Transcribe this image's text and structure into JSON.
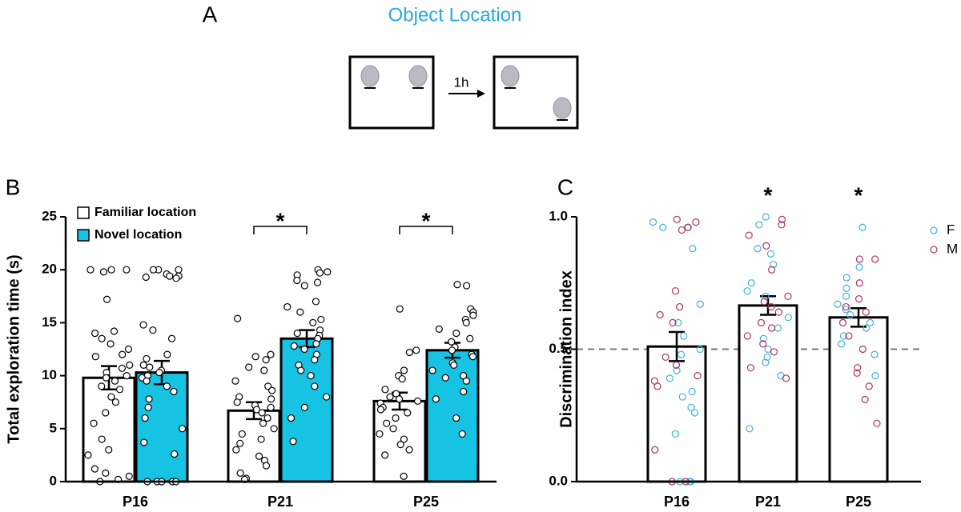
{
  "panel_a": {
    "label": "A",
    "title": "Object Location",
    "interval": "1h"
  },
  "chart_data": [
    {
      "type": "bar",
      "panel": "B",
      "ylabel": "Total exploration time (s)",
      "categories": [
        "P16",
        "P21",
        "P25"
      ],
      "ylim": [
        0,
        25
      ],
      "yticks": [
        0,
        5,
        10,
        15,
        20,
        25
      ],
      "significance": [
        null,
        "*",
        "*"
      ],
      "series": [
        {
          "name": "Familiar location",
          "color": "#ffffff",
          "values": [
            9.8,
            6.7,
            7.6
          ],
          "errors": [
            1.1,
            0.8,
            0.8
          ],
          "points": [
            [
              20,
              20,
              20,
              19.8,
              17.2,
              14.2,
              14,
              13.5,
              13,
              12.5,
              12,
              11.8,
              11,
              10.7,
              10.3,
              10,
              9.8,
              9.5,
              9,
              8.7,
              8,
              7.5,
              6.5,
              5.5,
              4,
              3,
              2.5,
              1.2,
              0.8,
              0.5,
              0.2,
              0
            ],
            [
              15.4,
              12,
              11.8,
              11.5,
              10.8,
              10.5,
              9.5,
              9,
              8.6,
              8,
              7.8,
              7.5,
              7.2,
              7,
              6.8,
              6.5,
              6,
              5.5,
              5,
              4.5,
              4,
              3.6,
              3,
              2.4,
              2,
              1.5,
              0.8,
              0.3,
              0.2
            ],
            [
              16.3,
              12.4,
              12.2,
              10.5,
              10,
              9.7,
              8.7,
              8.3,
              8,
              7.8,
              7.6,
              7.4,
              7,
              6.8,
              6.5,
              6,
              5.5,
              5,
              4.5,
              4,
              3.5,
              3,
              2.5,
              0.5
            ]
          ]
        },
        {
          "name": "Novel location",
          "color": "#17c3e3",
          "values": [
            10.3,
            13.5,
            12.4
          ],
          "errors": [
            1.1,
            0.8,
            0.7
          ],
          "points": [
            [
              20,
              20,
              20,
              19.6,
              19.4,
              19.4,
              19.3,
              19.2,
              14.8,
              14.3,
              13.5,
              12,
              11.6,
              11,
              10.8,
              10.5,
              10.3,
              10,
              9.8,
              9.5,
              9,
              8.5,
              7.8,
              7,
              6,
              5,
              3.7,
              2.6,
              0,
              0,
              0,
              0,
              0
            ],
            [
              20,
              19.8,
              19.7,
              19.5,
              19,
              18.8,
              18.5,
              17,
              16.5,
              16,
              15.3,
              15,
              14.3,
              14,
              13.8,
              13.5,
              13,
              12.8,
              12.5,
              12,
              11.5,
              11,
              10.5,
              10,
              9,
              8,
              7,
              6,
              3.8
            ],
            [
              18.6,
              18.5,
              16.3,
              16,
              15.7,
              15.3,
              15,
              14.4,
              14,
              13.5,
              13.2,
              12.7,
              12.4,
              12,
              11.8,
              11.2,
              11,
              10.5,
              10,
              9.8,
              9.5,
              8.5,
              7.8,
              6,
              4.5
            ]
          ]
        }
      ]
    },
    {
      "type": "bar",
      "panel": "C",
      "ylabel": "Discrimination index",
      "categories": [
        "P16",
        "P21",
        "P25"
      ],
      "values": [
        0.51,
        0.665,
        0.62
      ],
      "errors": [
        0.055,
        0.035,
        0.035
      ],
      "color": "#ffffff",
      "ylim": [
        0,
        1
      ],
      "yticks": [
        {
          "value": 0,
          "label": "0.0"
        },
        {
          "value": 0.5,
          "label": "0.5"
        },
        {
          "value": 1,
          "label": "1.0"
        }
      ],
      "reference_line": 0.5,
      "significance": [
        null,
        "*",
        "*"
      ],
      "series": [
        {
          "name": "F",
          "color": "#3fb3d6",
          "points": [
            [
              0.98,
              0.96,
              0.96,
              0.88,
              0.67,
              0.6,
              0.55,
              0.5,
              0.48,
              0.42,
              0.39,
              0.34,
              0.32,
              0.28,
              0.26,
              0.18,
              0,
              0,
              0
            ],
            [
              1.0,
              0.97,
              0.88,
              0.86,
              0.82,
              0.75,
              0.72,
              0.7,
              0.62,
              0.58,
              0.54,
              0.5,
              0.47,
              0.45,
              0.4,
              0.2
            ],
            [
              0.96,
              0.81,
              0.77,
              0.73,
              0.7,
              0.67,
              0.65,
              0.63,
              0.6,
              0.58,
              0.55,
              0.52,
              0.48,
              0.4
            ]
          ]
        },
        {
          "name": "M",
          "color": "#b0305a",
          "points": [
            [
              0.99,
              0.98,
              0.96,
              0.95,
              0.72,
              0.66,
              0.63,
              0.6,
              0.47,
              0.44,
              0.4,
              0.38,
              0.36,
              0.12,
              0,
              0
            ],
            [
              0.99,
              0.97,
              0.93,
              0.89,
              0.8,
              0.7,
              0.68,
              0.66,
              0.64,
              0.6,
              0.58,
              0.55,
              0.52,
              0.49,
              0.43,
              0.39
            ],
            [
              0.84,
              0.84,
              0.75,
              0.69,
              0.66,
              0.64,
              0.6,
              0.55,
              0.5,
              0.43,
              0.41,
              0.36,
              0.31,
              0.22
            ]
          ]
        }
      ]
    }
  ]
}
